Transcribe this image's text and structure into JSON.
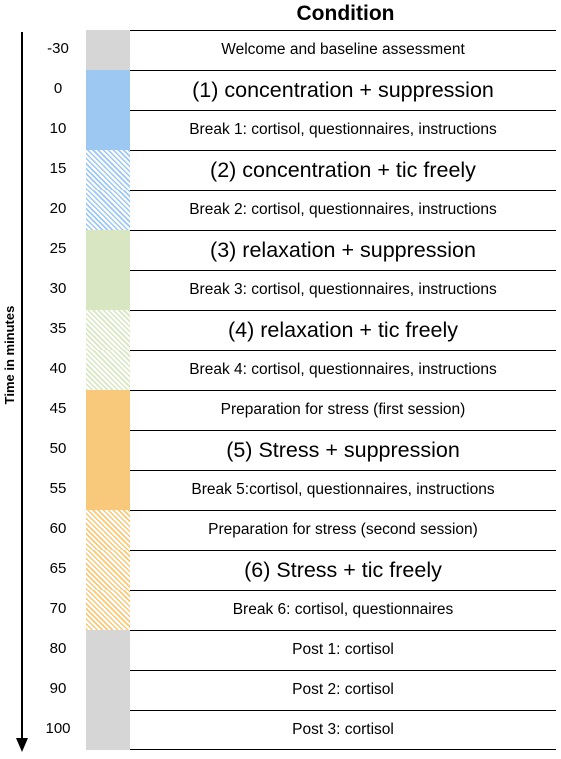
{
  "header": "Condition",
  "axis_label": "Time in minutes",
  "colors": {
    "gray": "#d6d6d6",
    "blue": "#9cc8f2",
    "green": "#d8e6c2",
    "orange": "#f8c97a"
  },
  "rows": [
    {
      "time": "-30",
      "label": "Welcome and baseline assessment",
      "size": "small",
      "fill": "gray",
      "pattern": "solid"
    },
    {
      "time": "0",
      "label": "(1) concentration + suppression",
      "size": "large",
      "fill": "blue",
      "pattern": "solid"
    },
    {
      "time": "10",
      "label": "Break 1: cortisol, questionnaires, instructions",
      "size": "small",
      "fill": "blue",
      "pattern": "solid"
    },
    {
      "time": "15",
      "label": "(2) concentration + tic freely",
      "size": "large",
      "fill": "blue",
      "pattern": "hatched"
    },
    {
      "time": "20",
      "label": "Break 2: cortisol, questionnaires, instructions",
      "size": "small",
      "fill": "blue",
      "pattern": "hatched"
    },
    {
      "time": "25",
      "label": "(3) relaxation + suppression",
      "size": "large",
      "fill": "green",
      "pattern": "solid"
    },
    {
      "time": "30",
      "label": "Break 3: cortisol, questionnaires, instructions",
      "size": "small",
      "fill": "green",
      "pattern": "solid"
    },
    {
      "time": "35",
      "label": "(4) relaxation + tic freely",
      "size": "large",
      "fill": "green",
      "pattern": "hatched"
    },
    {
      "time": "40",
      "label": "Break 4: cortisol, questionnaires, instructions",
      "size": "small",
      "fill": "green",
      "pattern": "hatched"
    },
    {
      "time": "45",
      "label": "Preparation for stress (first session)",
      "size": "small",
      "fill": "orange",
      "pattern": "solid"
    },
    {
      "time": "50",
      "label": "(5) Stress + suppression",
      "size": "large",
      "fill": "orange",
      "pattern": "solid"
    },
    {
      "time": "55",
      "label": "Break 5:cortisol, questionnaires, instructions",
      "size": "small",
      "fill": "orange",
      "pattern": "solid"
    },
    {
      "time": "60",
      "label": "Preparation for stress (second session)",
      "size": "small",
      "fill": "orange",
      "pattern": "hatched"
    },
    {
      "time": "65",
      "label": "(6) Stress + tic freely",
      "size": "large",
      "fill": "orange",
      "pattern": "hatched"
    },
    {
      "time": "70",
      "label": "Break 6: cortisol, questionnaires",
      "size": "small",
      "fill": "orange",
      "pattern": "hatched"
    },
    {
      "time": "80",
      "label": "Post 1: cortisol",
      "size": "small",
      "fill": "gray",
      "pattern": "solid"
    },
    {
      "time": "90",
      "label": "Post 2: cortisol",
      "size": "small",
      "fill": "gray",
      "pattern": "solid"
    },
    {
      "time": "100",
      "label": "Post 3: cortisol",
      "size": "small",
      "fill": "gray",
      "pattern": "solid"
    }
  ]
}
